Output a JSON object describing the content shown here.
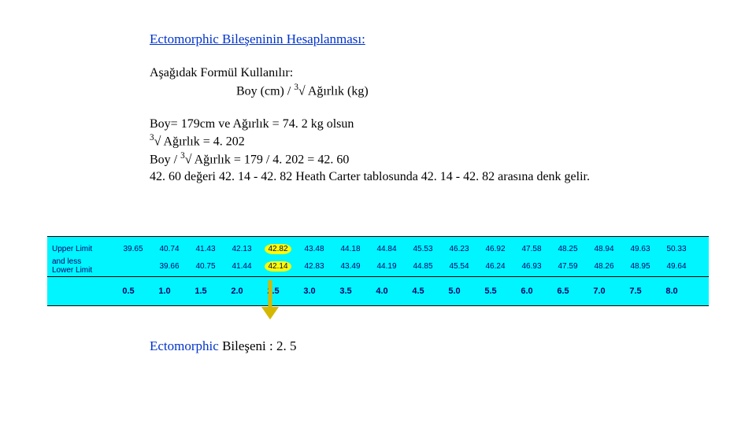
{
  "title": "Ectomorphic Bileşeninin Hesaplanması:",
  "formula_label": "Aşağıdak Formül Kullanılır:",
  "formula_expr_prefix": "Boy (cm) / ",
  "formula_sup": "3",
  "formula_expr_suffix": "√ Ağırlık (kg)",
  "calc_line1": "Boy= 179cm ve  Ağırlık = 74. 2 kg olsun",
  "calc_line2_sup": "3",
  "calc_line2": "√ Ağırlık = 4. 202",
  "calc_line3_prefix": "Boy / ",
  "calc_line3_sup": "3",
  "calc_line3_suffix": "√ Ağırlık = 179 / 4. 202 = 42. 60",
  "calc_line4": "42. 60 değeri 42. 14 - 42. 82 Heath Carter tablosunda  42. 14 - 42. 82 arasına denk gelir.",
  "table": {
    "upper_label": "Upper Limit",
    "lower_label": "Lower Limit",
    "and_label": "and less",
    "upper": [
      "39.65",
      "40.74",
      "41.43",
      "42.13",
      "42.82",
      "43.48",
      "44.18",
      "44.84",
      "45.53",
      "46.23",
      "46.92",
      "47.58",
      "48.25",
      "48.94",
      "49.63",
      "50.33"
    ],
    "lower": [
      "",
      "39.66",
      "40.75",
      "41.44",
      "42.14",
      "42.83",
      "43.49",
      "44.19",
      "44.85",
      "45.54",
      "46.24",
      "46.93",
      "47.59",
      "48.26",
      "48.95",
      "49.64"
    ],
    "scale": [
      "0.5",
      "1.0",
      "1.5",
      "2.0",
      "2.5",
      "3.0",
      "3.5",
      "4.0",
      "4.5",
      "5.0",
      "5.5",
      "6.0",
      "6.5",
      "7.0",
      "7.5",
      "8.0"
    ],
    "highlight_upper_index": 4,
    "highlight_lower_index": 4,
    "bg_color": "#00f5ff",
    "text_color": "#00006b",
    "highlight_color": "#ffff00"
  },
  "result_prefix": "Ectomorphic",
  "result_suffix": " Bileşeni : 2. 5"
}
